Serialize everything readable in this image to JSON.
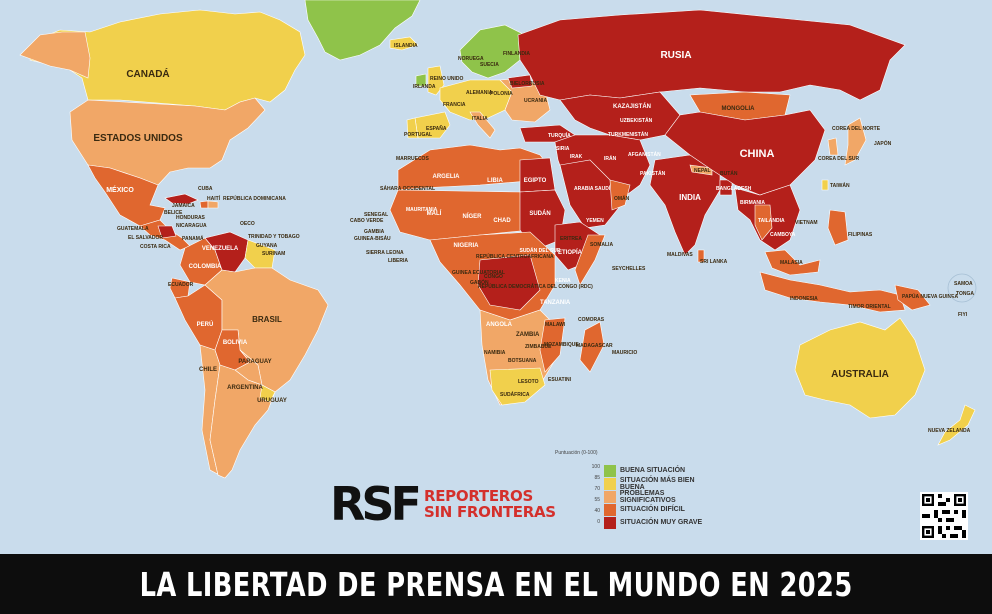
{
  "title": "LA LIBERTAD DE PRENSA EN EL MUNDO EN 2025",
  "colors": {
    "ocean": "#c9dcec",
    "buena": "#8fc34a",
    "mas_bien_buena": "#f1d04c",
    "problemas": "#f1a767",
    "dificil": "#e0672f",
    "muy_grave": "#b4201b"
  },
  "legend": {
    "title": "Puntuación (0-100)",
    "scale": [
      "100",
      "85",
      "70",
      "55",
      "40",
      "0"
    ],
    "items": [
      {
        "label": "BUENA SITUACIÓN",
        "color": "#8fc34a"
      },
      {
        "label": "SITUACIÓN MÁS BIEN BUENA",
        "color": "#f1d04c"
      },
      {
        "label": "PROBLEMAS SIGNIFICATIVOS",
        "color": "#f1a767"
      },
      {
        "label": "SITUACIÓN DIFÍCIL",
        "color": "#e0672f"
      },
      {
        "label": "SITUACIÓN MUY GRAVE",
        "color": "#b4201b"
      }
    ]
  },
  "logo": {
    "mark": "RSF",
    "line1": "REPORTEROS",
    "line2": "SIN FRONTERAS"
  },
  "countries": {
    "canada": "CANADÁ",
    "usa": "ESTADOS UNIDOS",
    "mexico": "MÉXICO",
    "cuba": "CUBA",
    "haiti": "HAITÍ",
    "rep_dom": "REPÚBLICA DOMINICANA",
    "jamaica": "JAMAICA",
    "belice": "BELICE",
    "honduras": "HONDURAS",
    "guatemala": "GUATEMALA",
    "el_salvador": "EL SALVADOR",
    "nicaragua": "NICARAGUA",
    "costa_rica": "COSTA RICA",
    "panama": "PANAMÁ",
    "oecs": "OECO",
    "trinidad": "TRINIDAD Y TOBAGO",
    "guyana": "GUYANA",
    "surinam": "SURINAM",
    "venezuela": "VENEZUELA",
    "colombia": "COLOMBIA",
    "ecuador": "ECUADOR",
    "peru": "PERÚ",
    "brasil": "BRASIL",
    "bolivia": "BOLIVIA",
    "paraguay": "PARAGUAY",
    "chile": "CHILE",
    "argentina": "ARGENTINA",
    "uruguay": "URUGUAY",
    "groenlandia": "",
    "islandia": "ISLANDIA",
    "noruega": "NORUEGA",
    "suecia": "SUECIA",
    "finlandia": "FINLANDIA",
    "reino_unido": "REINO UNIDO",
    "irlanda": "IRLANDA",
    "francia": "FRANCIA",
    "espana": "ESPAÑA",
    "portugal": "PORTUGAL",
    "alemania": "ALEMANIA",
    "polonia": "POLONIA",
    "ucrania": "UCRANIA",
    "bielorrusia": "BIELORRUSIA",
    "italia": "ITALIA",
    "rusia": "RUSIA",
    "kazajistan": "KAZAJISTÁN",
    "mongolia": "MONGOLIA",
    "china": "CHINA",
    "corea_norte": "COREA DEL NORTE",
    "corea_sur": "COREA DEL SUR",
    "japon": "JAPÓN",
    "taiwan": "TAIWÁN",
    "turquia": "TURQUÍA",
    "siria": "SIRIA",
    "irak": "IRAK",
    "iran": "IRÁN",
    "turkmenistan": "TURKMENISTÁN",
    "uzbekistan": "UZBEKISTÁN",
    "afganistan": "AFGANISTÁN",
    "pakistan": "PAKISTÁN",
    "india": "INDIA",
    "nepal": "NEPAL",
    "butan": "BUTÁN",
    "bangladesh": "BANGLADESH",
    "birmania": "BIRMANIA",
    "tailandia": "TAILANDIA",
    "camboya": "CAMBOYA",
    "vietnam": "VIETNAM",
    "filipinas": "FILIPINAS",
    "malasia": "MALASIA",
    "indonesia": "INDONESIA",
    "timor": "TIMOR ORIENTAL",
    "png": "PAPÚA NUEVA GUINEA",
    "sri_lanka": "SRI LANKA",
    "maldivas": "MALDIVAS",
    "arabia": "ARABIA SAUDÍ",
    "yemen": "YEMEN",
    "oman": "OMÁN",
    "egipto": "EGIPTO",
    "libia": "LIBIA",
    "argelia": "ARGELIA",
    "marruecos": "MARRUECOS",
    "mauritania": "MAURITANIA",
    "mali": "MALÍ",
    "niger": "NÍGER",
    "chad": "CHAD",
    "sudan": "SUDÁN",
    "sudan_sur": "SUDÁN DEL SUR",
    "etiopia": "ETIOPÍA",
    "somalia": "SOMALIA",
    "eritrea": "ERITREA",
    "nigeria": "NIGERIA",
    "senegal": "SENEGAL",
    "gambia": "GAMBIA",
    "guinea_bissau": "GUINEA-BISÁU",
    "sierra_leona": "SIERRA LEONA",
    "liberia": "LIBERIA",
    "cabo_verde": "CABO VERDE",
    "sahara": "SÁHARA OCCIDENTAL",
    "rca": "REPÚBLICA CENTROAFRICANA",
    "rdc": "REPÚBLICA DEMOCRÁTICA DEL CONGO (RDC)",
    "guinea_ec": "GUINEA ECUATORIAL",
    "gabon": "GABÓN",
    "congo": "CONGO",
    "kenia": "KENIA",
    "tanzania": "TANZANIA",
    "angola": "ANGOLA",
    "zambia": "ZAMBIA",
    "malawi": "MALAWI",
    "namibia": "NAMIBIA",
    "botsuana": "BOTSUANA",
    "zimbabue": "ZIMBABUE",
    "mozambique": "MOZAMBIQUE",
    "madagascar": "MADAGASCAR",
    "sudafrica": "SUDÁFRICA",
    "lesoto": "LESOTO",
    "esuatini": "ESUATINI",
    "comoras": "COMORAS",
    "mauricio": "MAURICIO",
    "seychelles": "SEYCHELLES",
    "australia": "AUSTRALIA",
    "nueva_zelanda": "NUEVA ZELANDA",
    "samoa": "SAMOA",
    "tonga": "TONGA",
    "fiyi": "FIYI"
  }
}
